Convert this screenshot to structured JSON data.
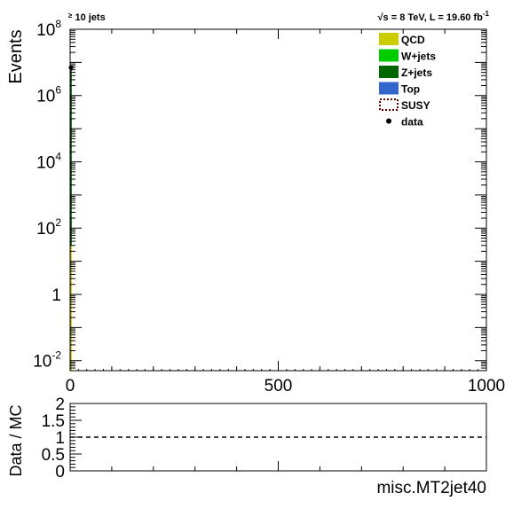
{
  "header": {
    "left_prefix": "≥",
    "left_text": "10 jets",
    "right_sqrt": "√s",
    "right_text": " = 8 TeV, L = 19.60 fb",
    "right_sup": "-1"
  },
  "colors": {
    "QCD": "#cccc00",
    "W+jets": "#00cc00",
    "Z+jets": "#006600",
    "Top": "#3366cc",
    "SUSY": "#660000",
    "data": "#000000",
    "ratio_line": "#000000"
  },
  "chart_data": [
    {
      "type": "bar",
      "subtype": "stacked-histogram-log",
      "ylabel": "Events",
      "xlabel": "",
      "xlim": [
        0,
        1000
      ],
      "ylim": [
        0.005,
        100000000
      ],
      "log_y": true,
      "x_ticks": [
        "0",
        "500",
        "1000"
      ],
      "y_ticks": [
        {
          "base": "10",
          "exp": "8",
          "value": 100000000
        },
        {
          "base": "10",
          "exp": "6",
          "value": 1000000
        },
        {
          "base": "10",
          "exp": "4",
          "value": 10000
        },
        {
          "base": "10",
          "exp": "2",
          "value": 100
        },
        {
          "base": "1",
          "exp": "",
          "value": 1
        },
        {
          "base": "10",
          "exp": "-2",
          "value": 0.01
        }
      ],
      "bin": [
        0,
        4
      ],
      "series": [
        {
          "name": "QCD",
          "values": [
            30
          ]
        },
        {
          "name": "Z+jets",
          "values": [
            7000000
          ]
        }
      ],
      "data_points": [
        {
          "x": 2,
          "y": 7000000
        }
      ],
      "legend": {
        "placement": "top-right",
        "entries": [
          {
            "label": "QCD",
            "style": "fill"
          },
          {
            "label": "W+jets",
            "style": "fill"
          },
          {
            "label": "Z+jets",
            "style": "fill"
          },
          {
            "label": "Top",
            "style": "fill"
          },
          {
            "label": "SUSY",
            "style": "dashed-box"
          },
          {
            "label": "data",
            "style": "marker"
          }
        ]
      },
      "grid": false
    },
    {
      "type": "line",
      "subtype": "ratio",
      "ylabel": "Data / MC",
      "xlabel": "misc.MT2jet40",
      "xlim": [
        0,
        1000
      ],
      "ylim": [
        0,
        2
      ],
      "y_ticks": [
        "0",
        "0.5",
        "1",
        "1.5",
        "2"
      ],
      "reference_line": 1,
      "grid": false
    }
  ]
}
